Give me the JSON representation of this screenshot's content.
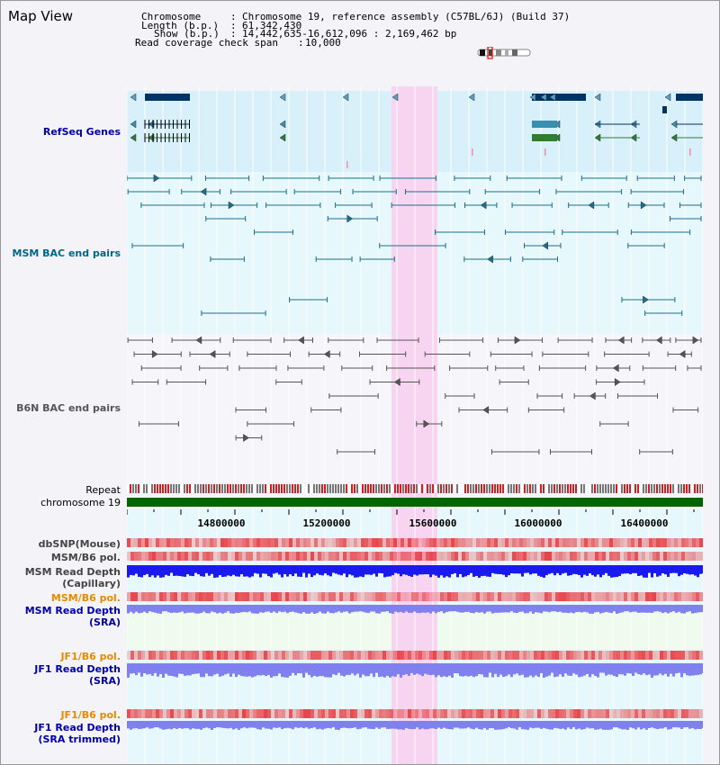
{
  "app_title": "Map View",
  "header": {
    "chromosome_label": "Chromosome",
    "chromosome_value": "Chromosome 19, reference assembly (C57BL/6J) (Build 37)",
    "length_label": "Length (b.p.)",
    "length_value": "61,342,430",
    "show_label": "Show (b.p.)",
    "show_value": "14,442,635-16,612,096 : 2,169,462 bp",
    "coverage_label": "Read coverage check span",
    "coverage_value": "10,000"
  },
  "tracks": {
    "refseq": "RefSeq Genes",
    "msm_bac": "MSM BAC end pairs",
    "b6n_bac": "B6N BAC end pairs",
    "repeat": "Repeat",
    "chromosome": "chromosome 19",
    "dbsnp": "dbSNP(Mouse)",
    "msm_b6_pol_1": "MSM/B6 pol.",
    "msm_read_depth_cap_1": "MSM Read Depth",
    "msm_read_depth_cap_2": "(Capillary)",
    "msm_b6_pol_2": "MSM/B6 pol.",
    "msm_read_depth_sra_1": "MSM Read Depth",
    "msm_read_depth_sra_2": "(SRA)",
    "jf1_b6_pol_1": "JF1/B6 pol.",
    "jf1_read_depth_sra_1": "JF1 Read Depth",
    "jf1_read_depth_sra_2": "(SRA)",
    "jf1_b6_pol_2": "JF1/B6 pol.",
    "jf1_read_depth_trim_1": "JF1 Read Depth",
    "jf1_read_depth_trim_2": "(SRA trimmed)"
  },
  "axis": {
    "ticks": [
      "14800000",
      "15200000",
      "15600000",
      "16000000",
      "16400000"
    ]
  },
  "colors": {
    "highlight": "#f7d5f0",
    "refseq_bg": "#d7f0fa",
    "lane_bg": "#e6f8fb",
    "gene_dark": "#003366",
    "gene_teal": "#3a8fb0",
    "gene_green": "#2e7d32",
    "msm_line": "#1a6e8e",
    "b6n_line": "#555555",
    "chromosome": "#006400",
    "pol_red": "#e8444a",
    "depth_blue": "#1a1aee",
    "depth_light": "#8080ee",
    "label_navy": "#0000aa",
    "label_teal": "#006688",
    "label_orange": "#e68a00"
  }
}
